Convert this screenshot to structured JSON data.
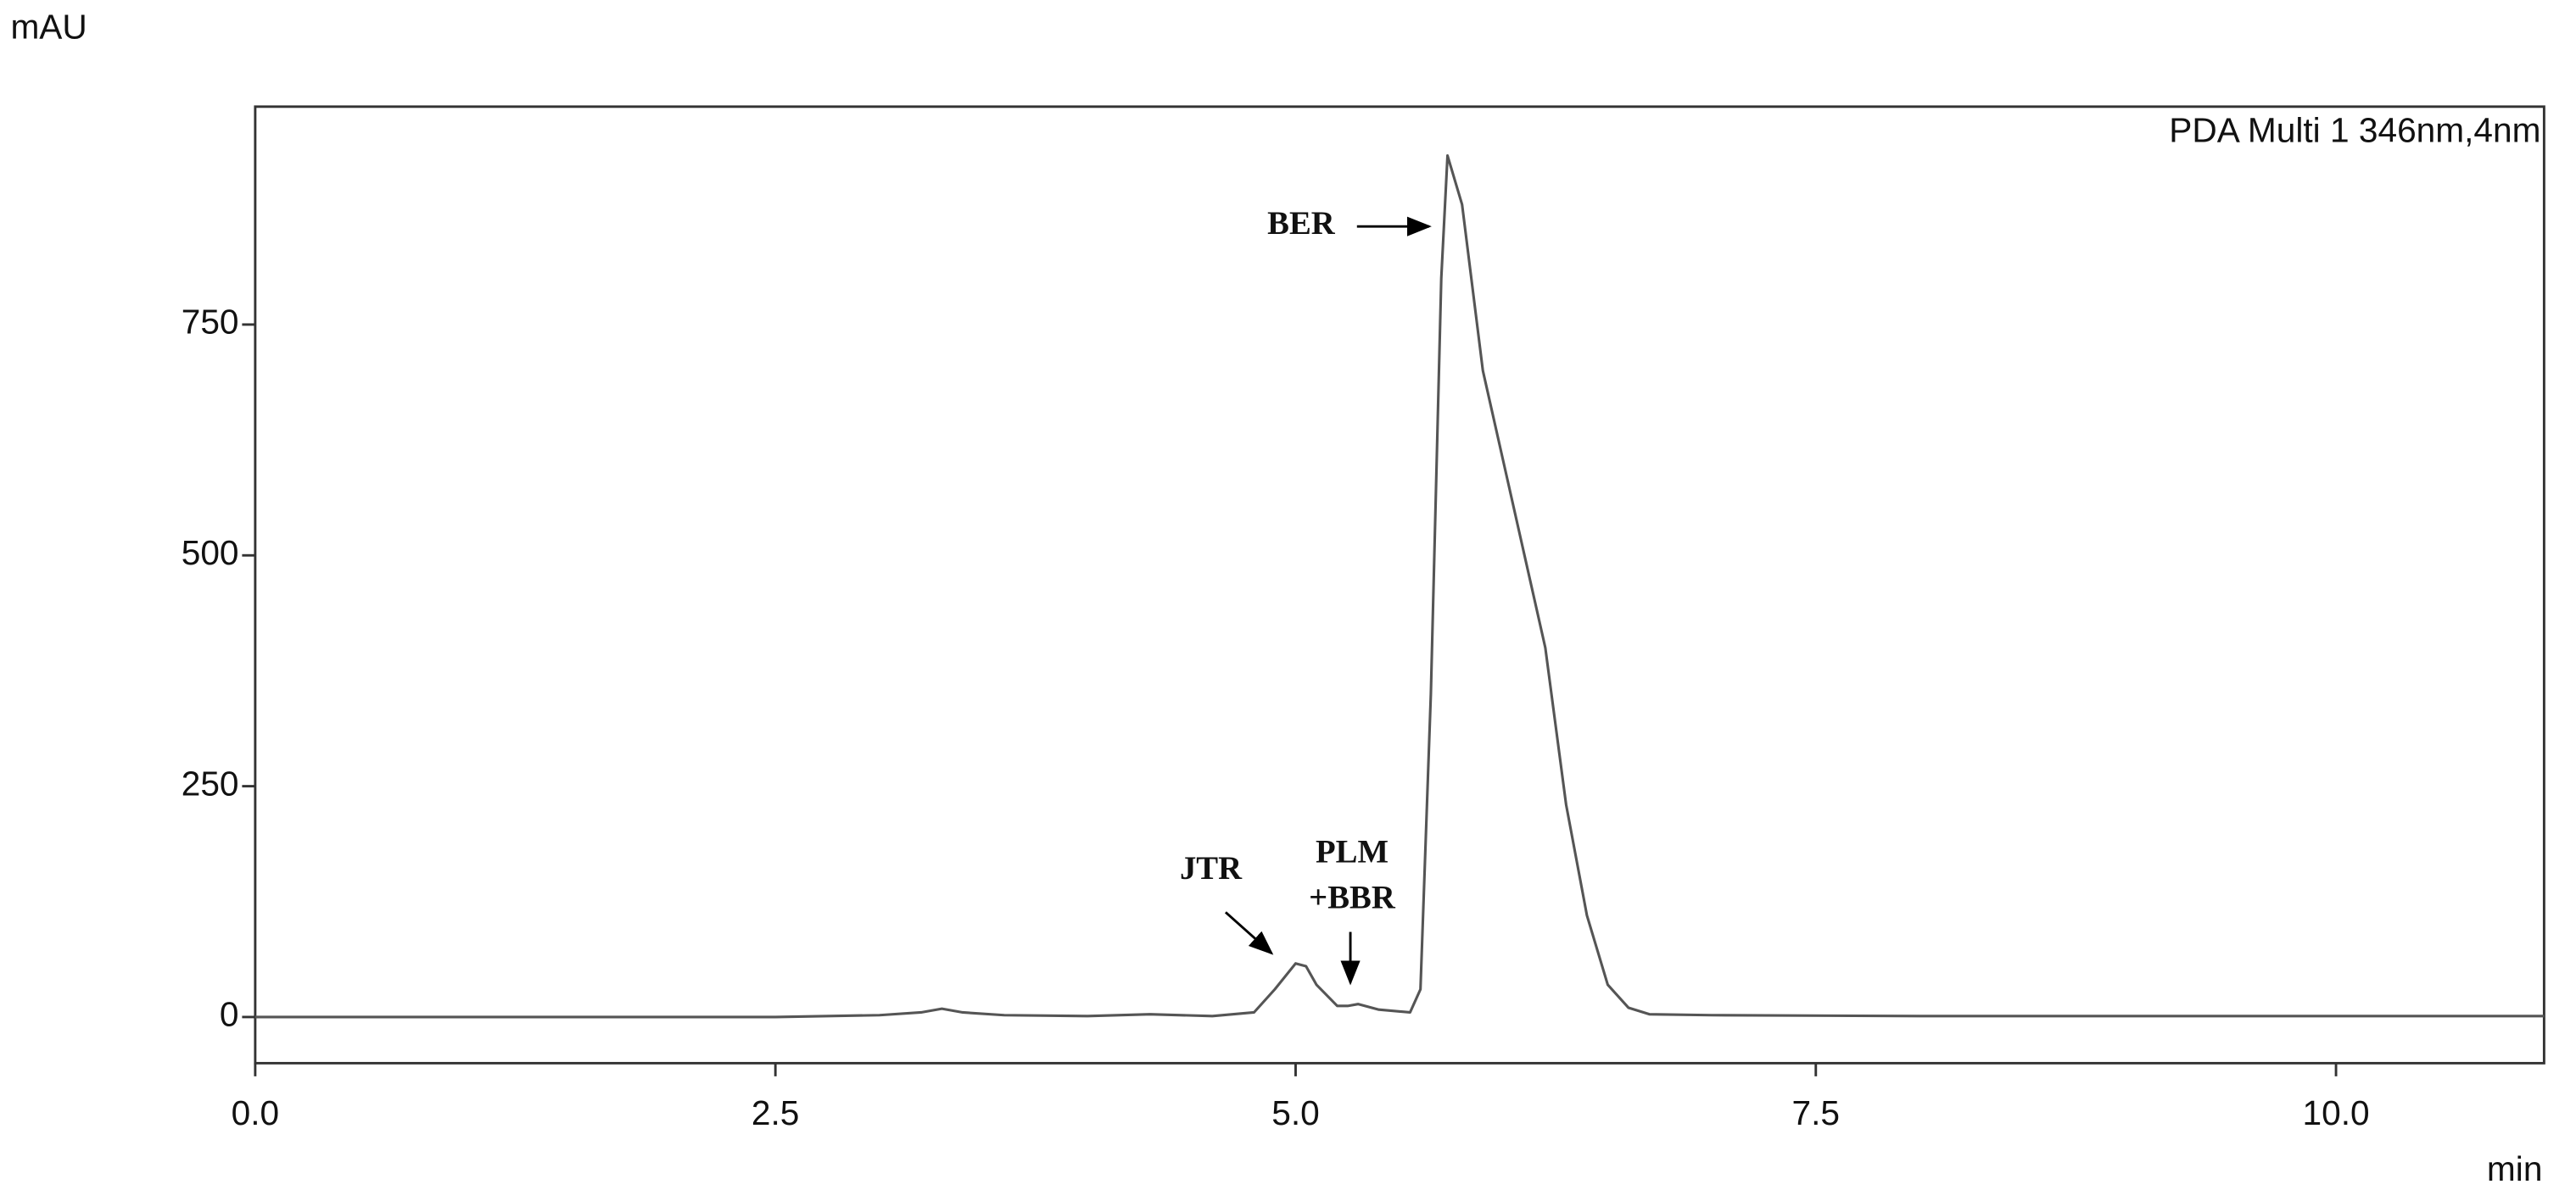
{
  "chart_data": {
    "type": "line",
    "y_axis_label": "mAU",
    "x_axis_label": "min",
    "legend_text": "PDA Multi 1 346nm,4nm",
    "annotations": [
      {
        "lines": [
          "BER"
        ]
      },
      {
        "lines": [
          "JTR"
        ]
      },
      {
        "lines": [
          "PLM",
          "+BBR"
        ]
      }
    ],
    "xlim": [
      0,
      11
    ],
    "ylim": [
      -50,
      986
    ],
    "xticks": [
      {
        "value": 0,
        "label": "0.0"
      },
      2.5,
      {
        "value": 5,
        "label": "5.0"
      },
      7.5,
      {
        "value": 10,
        "label": "10.0"
      }
    ],
    "yticks": [
      0,
      250,
      500,
      750
    ],
    "grid": false,
    "series": [
      {
        "color": "#555555",
        "x": [
          0,
          2.5,
          3.0,
          3.2,
          3.3,
          3.4,
          3.6,
          4.0,
          4.3,
          4.6,
          4.8,
          4.9,
          5.0,
          5.05,
          5.1,
          5.2,
          5.25,
          5.3,
          5.4,
          5.55,
          5.6,
          5.65,
          5.7,
          5.73,
          5.8,
          5.9,
          6.0,
          6.1,
          6.2,
          6.3,
          6.4,
          6.5,
          6.6,
          6.7,
          7.0,
          8.0,
          11.0
        ],
        "values": [
          0,
          0,
          2,
          5,
          9,
          5,
          2,
          1,
          3,
          1,
          5,
          30,
          58,
          55,
          35,
          12,
          12,
          14,
          8,
          5,
          30,
          350,
          800,
          933,
          880,
          700,
          600,
          500,
          400,
          230,
          110,
          35,
          10,
          3,
          2,
          1,
          1
        ]
      }
    ]
  }
}
